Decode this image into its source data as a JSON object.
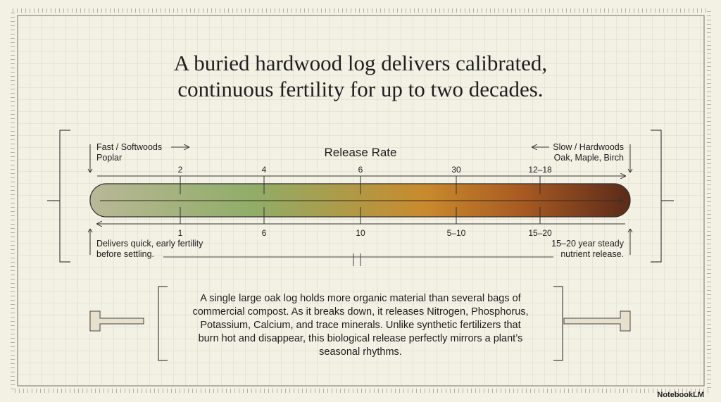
{
  "header": {
    "title_lines": [
      "A buried hardwood log delivers calibrated,",
      "continuous fertility for up to two decades."
    ]
  },
  "scale": {
    "label": "Release Rate",
    "left_label": [
      "Fast / Softwoods",
      "Poplar"
    ],
    "right_label": [
      "Slow / Hardwoods",
      "Oak, Maple, Birch"
    ],
    "top_ticks": [
      "2",
      "4",
      "6",
      "30",
      "12–18"
    ],
    "bottom_ticks": [
      "1",
      "6",
      "10",
      "5–10",
      "15–20"
    ],
    "left_note": [
      "Delivers quick, early fertility",
      "before settling."
    ],
    "right_note": [
      "15–20 year steady",
      "nutrient release."
    ]
  },
  "body": {
    "lines": [
      "A single large oak log holds more organic material than several bags of",
      "commercial compost. As it breaks down, it releases Nitrogen, Phosphorus,",
      "Potassium, Calcium, and trace minerals. Unlike synthetic fertilizers that",
      "burn hot and disappear, this biological release perfectly mirrors a plant’s",
      "seasonal rhythms."
    ]
  },
  "footer": {
    "brand": "NotebookLM"
  }
}
